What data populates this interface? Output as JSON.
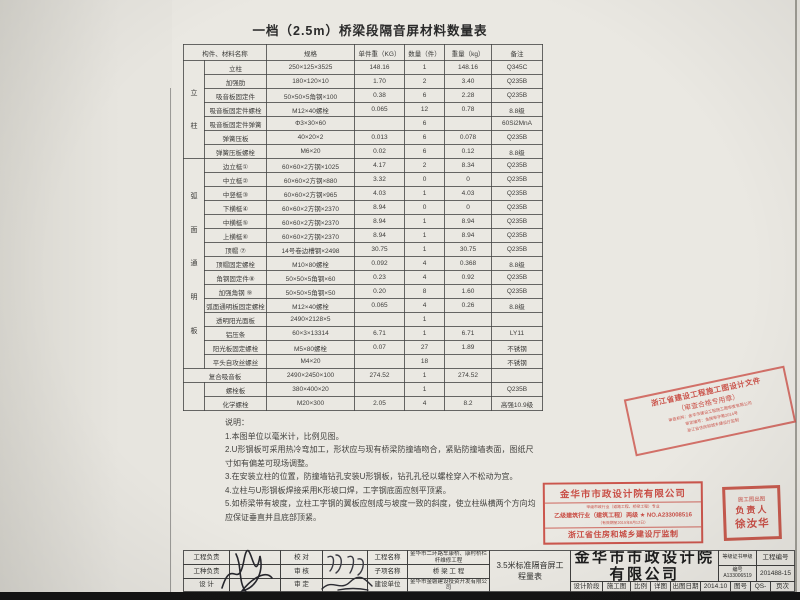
{
  "title": "一档（2.5m）桥梁段隔音屏材料数量表",
  "table": {
    "headers": [
      "构件、材料名称",
      "规格",
      "单件重（KG）",
      "数量（件）",
      "重量（kg）",
      "备注"
    ],
    "sections": [
      {
        "group": "立柱",
        "rows": [
          [
            "立柱",
            "250×125×3525",
            "148.16",
            "1",
            "148.16",
            "Q345C"
          ],
          [
            "加强肋",
            "180×120×10",
            "1.70",
            "2",
            "3.40",
            "Q235B"
          ],
          [
            "吸音板固定件",
            "50×50×5角钢×100",
            "0.38",
            "6",
            "2.28",
            "Q235B"
          ],
          [
            "吸音板固定件螺栓",
            "M12×40螺栓",
            "0.065",
            "12",
            "0.78",
            "8.8级"
          ],
          [
            "吸音板固定件弹簧",
            "Φ3×30×60",
            "",
            "6",
            "",
            "60Si2MnA"
          ],
          [
            "弹簧压板",
            "40×20×2",
            "0.013",
            "6",
            "0.078",
            "Q235B"
          ],
          [
            "弹簧压板螺栓",
            "M6×20",
            "0.02",
            "6",
            "0.12",
            "8.8级"
          ]
        ]
      },
      {
        "group": "弧面通明板",
        "rows": [
          [
            "边立梃①",
            "60×60×2方钢×1025",
            "4.17",
            "2",
            "8.34",
            "Q235B"
          ],
          [
            "中立梃②",
            "60×60×2方钢×880",
            "3.32",
            "0",
            "0",
            "Q235B"
          ],
          [
            "中竖梃③",
            "60×60×2方钢×965",
            "4.03",
            "1",
            "4.03",
            "Q235B"
          ],
          [
            "下横梃④",
            "60×60×2方钢×2370",
            "8.94",
            "0",
            "0",
            "Q235B"
          ],
          [
            "中横梃⑤",
            "60×60×2方钢×2370",
            "8.94",
            "1",
            "8.94",
            "Q235B"
          ],
          [
            "上横梃⑥",
            "60×60×2方钢×2370",
            "8.94",
            "1",
            "8.94",
            "Q235B"
          ],
          [
            "顶帽 ⑦",
            "14号卷边槽钢×2498",
            "30.75",
            "1",
            "30.75",
            "Q235B"
          ],
          [
            "顶帽固定螺栓",
            "M10×80螺栓",
            "0.092",
            "4",
            "0.368",
            "8.8级"
          ],
          [
            "角钢固定件⑧",
            "50×50×5角钢×60",
            "0.23",
            "4",
            "0.92",
            "Q235B"
          ],
          [
            "加强角钢 ⑨",
            "50×50×5角钢×50",
            "0.20",
            "8",
            "1.60",
            "Q235B"
          ],
          [
            "弧面通明板固定螺栓",
            "M12×40螺栓",
            "0.065",
            "4",
            "0.26",
            "8.8级"
          ],
          [
            "透明阳光面板",
            "2490×2128×5",
            "",
            "1",
            "",
            ""
          ],
          [
            "铝压条",
            "60×3×13314",
            "6.71",
            "1",
            "6.71",
            "LY11"
          ],
          [
            "阳光板固定螺栓",
            "M5×80螺栓",
            "0.07",
            "27",
            "1.89",
            "不锈钢"
          ],
          [
            "平头自攻丝螺丝",
            "M4×20",
            "",
            "18",
            "",
            "不锈钢"
          ]
        ]
      },
      {
        "group": null,
        "rows": [
          [
            "复合吸音板",
            "2490×2450×100",
            "274.52",
            "1",
            "274.52",
            ""
          ]
        ]
      },
      {
        "group": "",
        "rows": [
          [
            "螺栓板",
            "380×400×20",
            "",
            "1",
            "",
            "Q235B"
          ],
          [
            "化学螺栓",
            "M20×300",
            "2.05",
            "4",
            "8.2",
            "高强10.9级"
          ]
        ]
      }
    ]
  },
  "notes": {
    "heading": "说明：",
    "items": [
      "1.本图单位以毫米计，比例见图。",
      "2.U形钢板可采用热冷弯加工，形状应与现有桥梁防撞墙吻合，紧贴防撞墙表面，图纸尺寸如有偏差可现场调整。",
      "3.在安装立柱的位置，防撞墙钻孔安装U形钢板，钻孔孔径以螺栓穿入不松动为宜。",
      "4.立柱与U形钢板焊接采用K形坡口焊，工字钢底面应刨平顶紧。",
      "5.如桥梁带有坡度，立柱工字钢的翼板应刨成与坡度一致的斜度，使立柱纵横两个方向均应保证垂直并且底部顶紧。"
    ]
  },
  "stamps": {
    "review": {
      "line1": "浙江省建设工程施工图设计文件",
      "line2": "（审查合格专用章）",
      "line3": "审查机构：金华市建设工程施工图审查有限公司",
      "line4": "审定编号：金施审字第2014号",
      "line5": "浙江省住房和城乡建设厅监制"
    },
    "company": {
      "line1": "金华市市政设计院有限公司",
      "line2": "甲级市政行业（道路工程、桥梁工程）专业",
      "line3": "乙级建筑行业（建筑工程）两级 ★ NO.A233008516",
      "line4": "（有效期至2015年6月12日）",
      "line5": "浙江省住房和城乡建设厅监制"
    },
    "chief": {
      "line1": "施工图出图",
      "line2": "负责人",
      "line3": "徐汝华"
    }
  },
  "titleblock": {
    "role_labels_left": [
      "工程负责",
      "工种负责",
      "设  计"
    ],
    "role_labels_right": [
      "校  对",
      "审  核",
      "审  定"
    ],
    "project_label": "工程名称",
    "project_value": "金华市二环路车康桥、康村桥栏杆维修工程",
    "sub_label": "子项名称",
    "sub_value": "桥 梁 工 程",
    "builder_label": "建设单位",
    "builder_value": "金华市金磐建设投资开发有限公司",
    "sheet_title": "3.5米标准隔音屏工程量表",
    "company": "金华市市政设计院有限公司",
    "cert_level": "等级证书甲级",
    "cert_no": "编号 A133006519",
    "proj_no_label": "工程编号",
    "proj_no": "201488-15",
    "stage_label": "设计阶段",
    "stage_value": "施工图",
    "scale_label": "比例",
    "detail_label": "详图",
    "date_label": "出图日期",
    "date_value": "2014.10",
    "fig_label": "图号",
    "fig_value": "QS-",
    "page_label": "页次"
  }
}
